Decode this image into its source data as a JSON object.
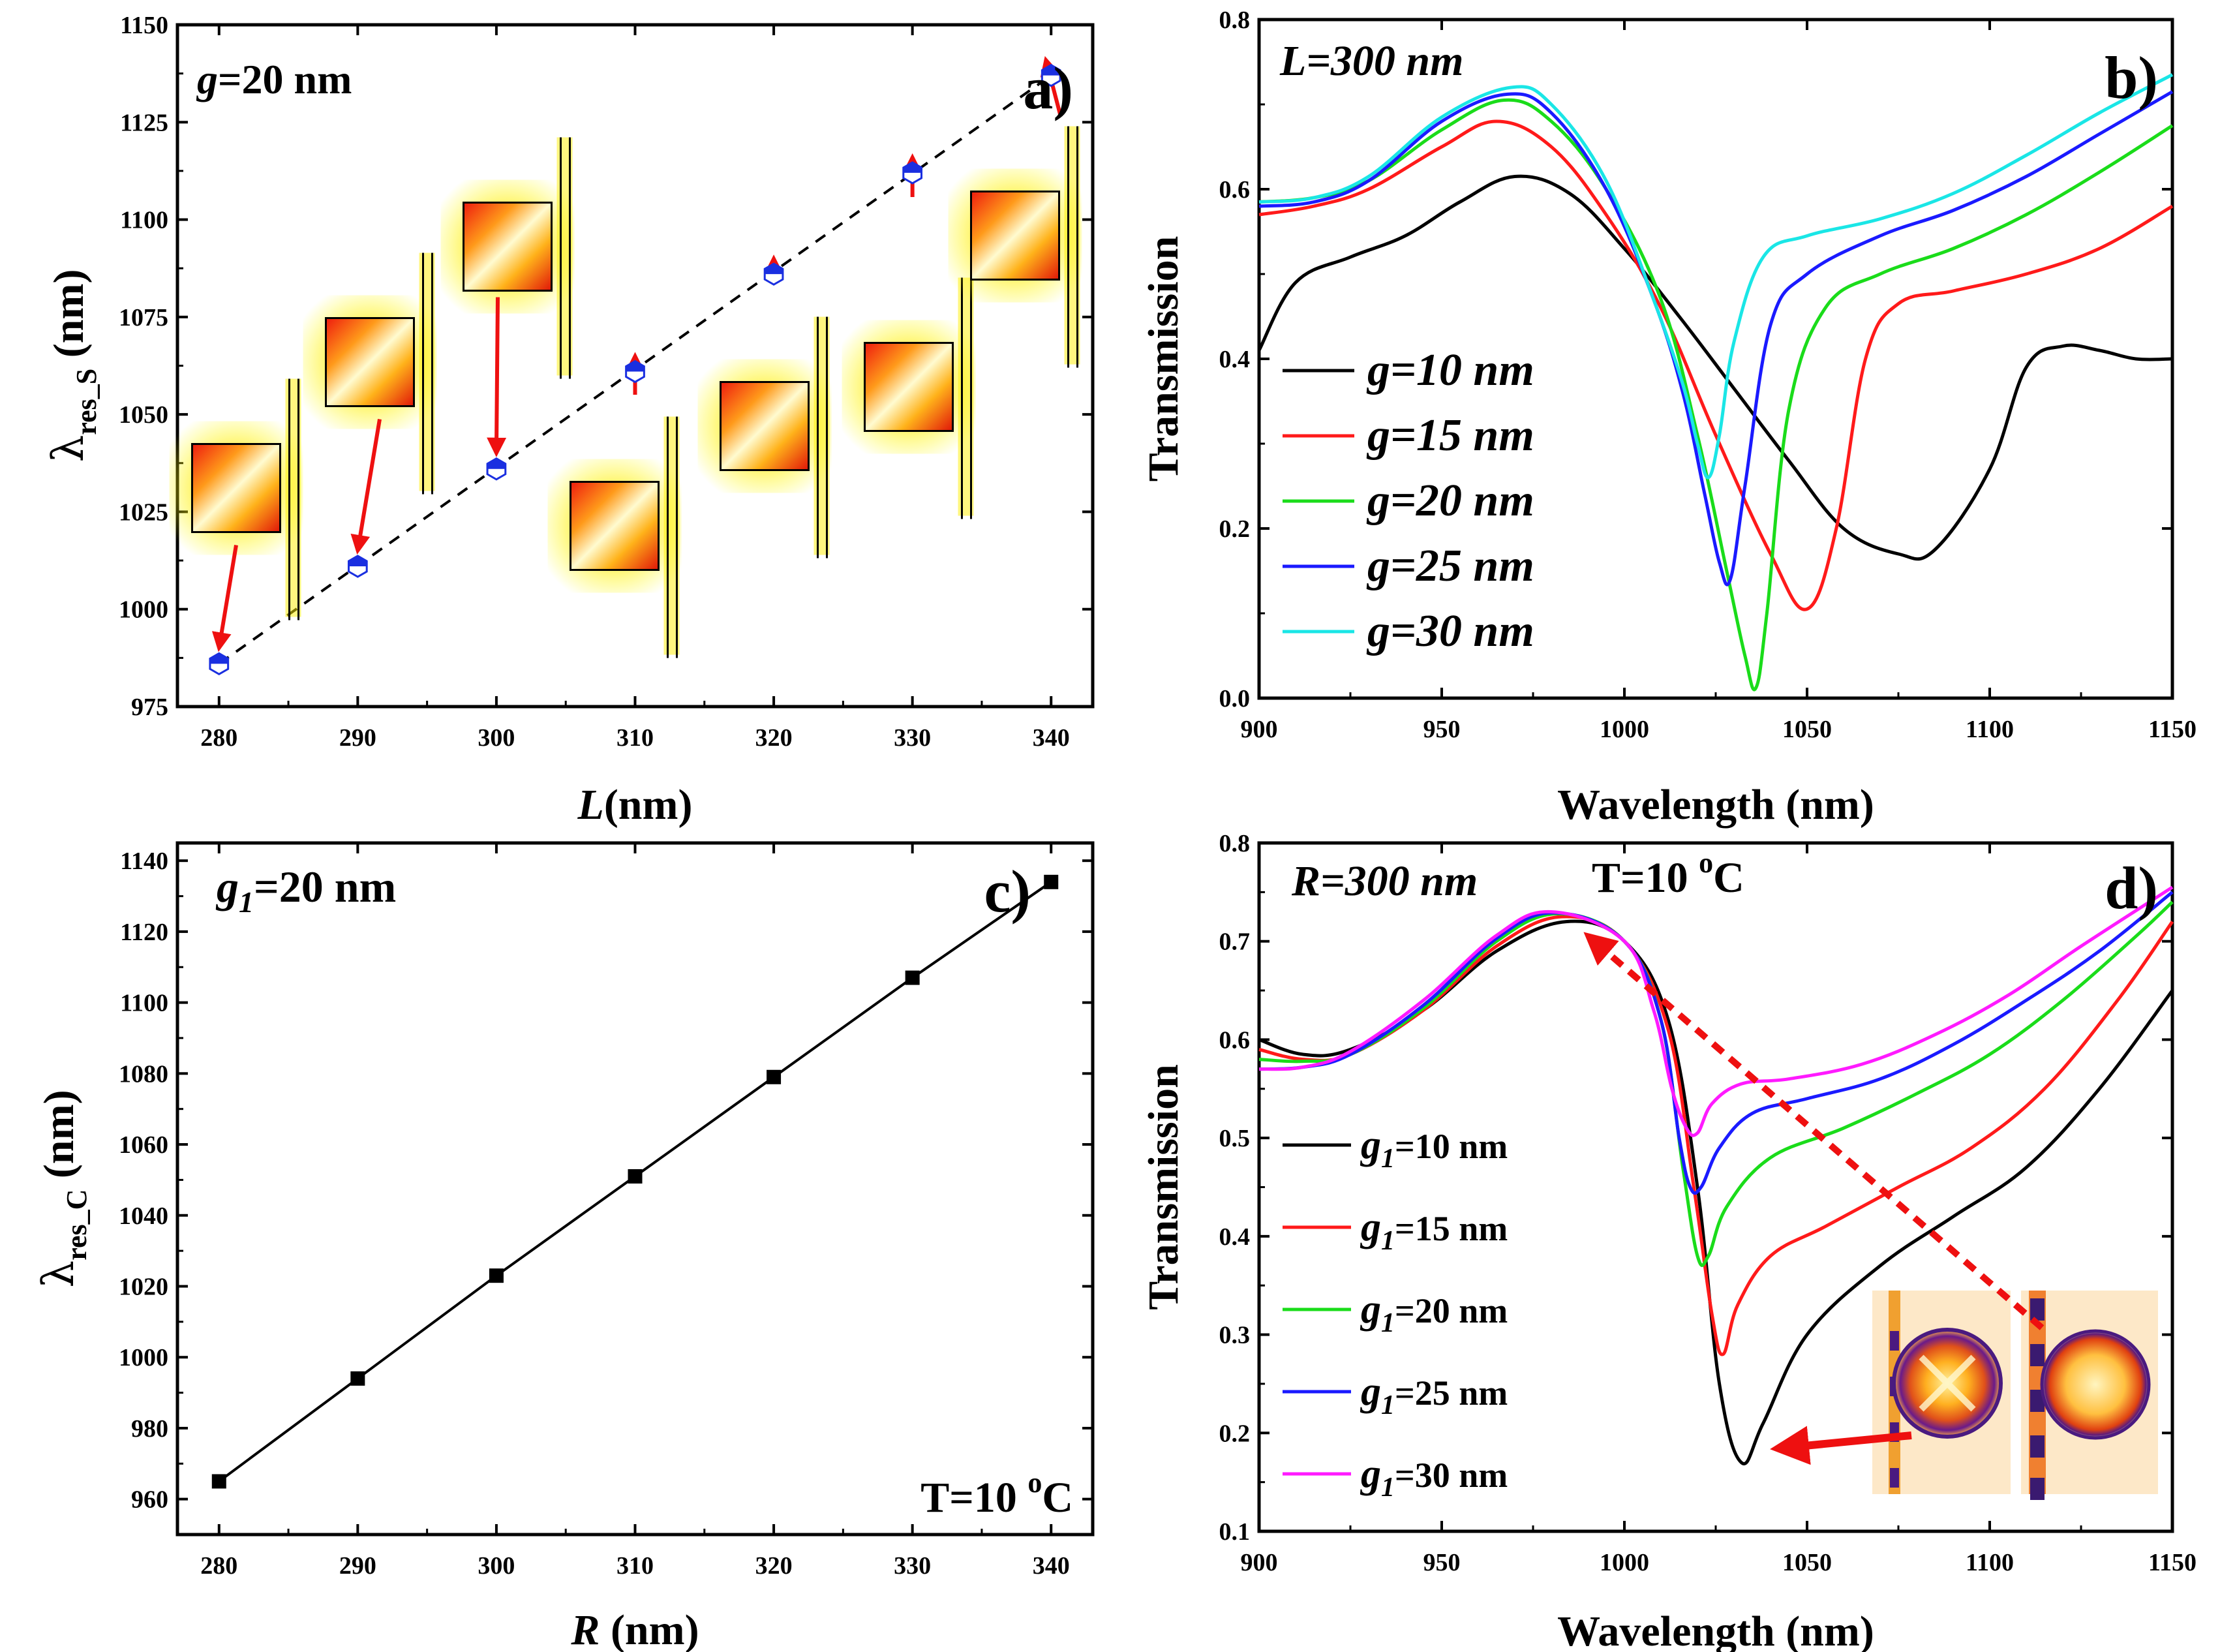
{
  "chart_data": [
    {
      "id": "a",
      "type": "scatter",
      "panel_label": "a)",
      "annotation": {
        "prefix": "g",
        "value": "=20 nm"
      },
      "xlabel": {
        "var": "L",
        "unit": "(nm)"
      },
      "ylabel": {
        "base": "λ",
        "sub": "res_S",
        "unit": " (nm)"
      },
      "xlim": [
        277,
        343
      ],
      "ylim": [
        975,
        1150
      ],
      "xticks": [
        280,
        290,
        300,
        310,
        320,
        330,
        340
      ],
      "yticks": [
        975,
        1000,
        1025,
        1050,
        1075,
        1100,
        1125,
        1150
      ],
      "x": [
        280,
        290,
        300,
        310,
        320,
        330,
        340
      ],
      "y": [
        986,
        1011,
        1036,
        1061,
        1086,
        1112,
        1137
      ],
      "fit_line": "dashed",
      "marker_color": "#1a2fe0",
      "insets": "field-profile"
    },
    {
      "id": "b",
      "type": "line",
      "panel_label": "b)",
      "annotation": "L=300 nm",
      "xlabel": "Wavelength (nm)",
      "ylabel": "Transmission",
      "xlim": [
        900,
        1150
      ],
      "ylim": [
        0,
        0.8
      ],
      "xticks": [
        900,
        950,
        1000,
        1050,
        1100,
        1150
      ],
      "yticks": [
        "0.0",
        "0.2",
        "0.4",
        "0.6",
        "0.8"
      ],
      "series": [
        {
          "name": "g=10 nm",
          "color": "#000000",
          "x": [
            900,
            910,
            925,
            940,
            955,
            970,
            985,
            1000,
            1015,
            1030,
            1045,
            1060,
            1075,
            1085,
            1100,
            1110,
            1120,
            1130,
            1140,
            1150
          ],
          "y": [
            0.41,
            0.49,
            0.52,
            0.545,
            0.585,
            0.615,
            0.595,
            0.53,
            0.45,
            0.365,
            0.28,
            0.2,
            0.17,
            0.175,
            0.27,
            0.39,
            0.415,
            0.41,
            0.4,
            0.4
          ]
        },
        {
          "name": "g=15 nm",
          "color": "#ff1a1a",
          "x": [
            900,
            915,
            930,
            950,
            965,
            980,
            995,
            1010,
            1025,
            1040,
            1050,
            1058,
            1066,
            1075,
            1090,
            1110,
            1130,
            1150
          ],
          "y": [
            0.57,
            0.58,
            0.6,
            0.65,
            0.68,
            0.65,
            0.57,
            0.46,
            0.31,
            0.17,
            0.105,
            0.2,
            0.4,
            0.465,
            0.48,
            0.5,
            0.53,
            0.58
          ]
        },
        {
          "name": "g=20 nm",
          "color": "#1adc1a",
          "x": [
            900,
            915,
            930,
            950,
            967,
            980,
            995,
            1010,
            1020,
            1028,
            1033,
            1036,
            1039,
            1045,
            1055,
            1070,
            1090,
            1110,
            1130,
            1150
          ],
          "y": [
            0.585,
            0.59,
            0.61,
            0.67,
            0.705,
            0.68,
            0.6,
            0.47,
            0.31,
            0.15,
            0.05,
            0.012,
            0.1,
            0.34,
            0.46,
            0.5,
            0.53,
            0.57,
            0.62,
            0.675
          ]
        },
        {
          "name": "g=25 nm",
          "color": "#1a1aff",
          "x": [
            900,
            915,
            930,
            950,
            968,
            980,
            995,
            1008,
            1016,
            1022,
            1026,
            1029,
            1033,
            1040,
            1050,
            1070,
            1090,
            1110,
            1130,
            1150
          ],
          "y": [
            0.58,
            0.585,
            0.61,
            0.68,
            0.712,
            0.69,
            0.6,
            0.47,
            0.36,
            0.24,
            0.16,
            0.14,
            0.25,
            0.44,
            0.5,
            0.545,
            0.575,
            0.615,
            0.665,
            0.715
          ]
        },
        {
          "name": "g=30 nm",
          "color": "#1ae6e6",
          "x": [
            900,
            915,
            930,
            950,
            969,
            980,
            995,
            1008,
            1016,
            1020,
            1023,
            1026,
            1030,
            1038,
            1050,
            1070,
            1090,
            1110,
            1130,
            1150
          ],
          "y": [
            0.585,
            0.59,
            0.615,
            0.685,
            0.72,
            0.7,
            0.61,
            0.47,
            0.37,
            0.3,
            0.26,
            0.31,
            0.42,
            0.52,
            0.545,
            0.565,
            0.595,
            0.64,
            0.69,
            0.735
          ]
        }
      ]
    },
    {
      "id": "c",
      "type": "line",
      "panel_label": "c)",
      "annotation": {
        "prefix": "g",
        "sub": "1",
        "value": "=20 nm"
      },
      "annotation2": {
        "text": "T=10 ",
        "sup": "o",
        "unit": "C"
      },
      "xlabel": {
        "var": "R",
        "unit": " (nm)"
      },
      "ylabel": {
        "base": "λ",
        "sub": "res_C",
        "unit": " (nm)"
      },
      "xlim": [
        277,
        343
      ],
      "ylim": [
        950,
        1145
      ],
      "xticks": [
        280,
        290,
        300,
        310,
        320,
        330,
        340
      ],
      "yticks": [
        960,
        980,
        1000,
        1020,
        1040,
        1060,
        1080,
        1100,
        1120,
        1140
      ],
      "x": [
        280,
        290,
        300,
        310,
        320,
        330,
        340
      ],
      "y": [
        965,
        994,
        1023,
        1051,
        1079,
        1107,
        1134
      ],
      "marker": "square",
      "color": "#000000"
    },
    {
      "id": "d",
      "type": "line",
      "panel_label": "d)",
      "annotation": "R=300 nm",
      "annotation2": {
        "text": "T=10 ",
        "sup": "o",
        "unit": "C"
      },
      "xlabel": "Wavelength (nm)",
      "ylabel": "Transmission",
      "xlim": [
        900,
        1150
      ],
      "ylim": [
        0.1,
        0.8
      ],
      "xticks": [
        900,
        950,
        1000,
        1050,
        1100,
        1150
      ],
      "yticks": [
        "0.1",
        "0.2",
        "0.3",
        "0.4",
        "0.5",
        "0.6",
        "0.7",
        "0.8"
      ],
      "series": [
        {
          "name": "=10 nm",
          "color": "#000000",
          "x": [
            900,
            912,
            925,
            945,
            965,
            984,
            1000,
            1012,
            1020,
            1026,
            1032,
            1038,
            1050,
            1070,
            1090,
            1110,
            1130,
            1150
          ],
          "y": [
            0.6,
            0.585,
            0.59,
            0.63,
            0.69,
            0.72,
            0.7,
            0.62,
            0.45,
            0.25,
            0.17,
            0.21,
            0.3,
            0.37,
            0.42,
            0.47,
            0.55,
            0.65
          ]
        },
        {
          "name": "=15 nm",
          "color": "#ff1a1a",
          "x": [
            900,
            912,
            925,
            945,
            965,
            983,
            1000,
            1012,
            1019,
            1024,
            1027,
            1031,
            1040,
            1055,
            1075,
            1095,
            1115,
            1135,
            1150
          ],
          "y": [
            0.59,
            0.58,
            0.585,
            0.63,
            0.695,
            0.725,
            0.7,
            0.61,
            0.45,
            0.32,
            0.28,
            0.33,
            0.38,
            0.41,
            0.45,
            0.49,
            0.55,
            0.64,
            0.72
          ]
        },
        {
          "name": "=20 nm",
          "color": "#1adc1a",
          "x": [
            900,
            912,
            925,
            945,
            965,
            982,
            1000,
            1010,
            1016,
            1020,
            1023,
            1028,
            1040,
            1060,
            1080,
            1100,
            1120,
            1140,
            1150
          ],
          "y": [
            0.58,
            0.578,
            0.585,
            0.632,
            0.7,
            0.728,
            0.7,
            0.62,
            0.47,
            0.38,
            0.38,
            0.43,
            0.48,
            0.51,
            0.545,
            0.585,
            0.64,
            0.705,
            0.74
          ]
        },
        {
          "name": "=25 nm",
          "color": "#1a1aff",
          "x": [
            900,
            912,
            925,
            945,
            965,
            981,
            1000,
            1010,
            1015,
            1018,
            1021,
            1026,
            1035,
            1050,
            1070,
            1090,
            1110,
            1130,
            1150
          ],
          "y": [
            0.57,
            0.572,
            0.585,
            0.635,
            0.703,
            0.729,
            0.7,
            0.62,
            0.5,
            0.45,
            0.45,
            0.49,
            0.525,
            0.54,
            0.56,
            0.595,
            0.64,
            0.69,
            0.75
          ]
        },
        {
          "name": "=30 nm",
          "color": "#ff1aff",
          "x": [
            900,
            912,
            925,
            945,
            965,
            980,
            1000,
            1008,
            1013,
            1017,
            1020,
            1024,
            1032,
            1045,
            1065,
            1085,
            1105,
            1125,
            1150
          ],
          "y": [
            0.57,
            0.572,
            0.588,
            0.64,
            0.706,
            0.73,
            0.7,
            0.63,
            0.55,
            0.51,
            0.505,
            0.535,
            0.555,
            0.56,
            0.575,
            0.605,
            0.645,
            0.695,
            0.755
          ]
        }
      ],
      "legend_prefix": {
        "var": "g",
        "sub": "1"
      },
      "insets": "mode-profile"
    }
  ]
}
